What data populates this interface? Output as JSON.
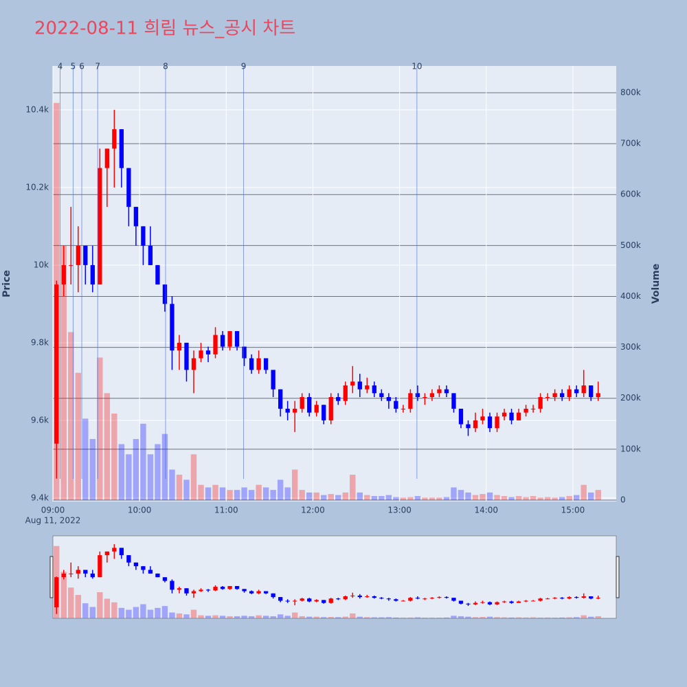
{
  "chart_data": {
    "type": "candlestick",
    "title": "2022-08-11 희림 뉴스_공시 차트",
    "y_label": "Price",
    "y2_label": "Volume",
    "xaxis_date": "Aug 11, 2022",
    "increasing_color": "#ff0000",
    "decreasing_color": "#0000ff",
    "event_color": "#4169e1",
    "grid": true,
    "rangeslider": true,
    "x": [
      "2022-08-11 09:00",
      "2022-08-11 09:05",
      "2022-08-11 09:10",
      "2022-08-11 09:15",
      "2022-08-11 09:20",
      "2022-08-11 09:25",
      "2022-08-11 09:30",
      "2022-08-11 09:35",
      "2022-08-11 09:40",
      "2022-08-11 09:45",
      "2022-08-11 09:50",
      "2022-08-11 09:55",
      "2022-08-11 10:00",
      "2022-08-11 10:05",
      "2022-08-11 10:10",
      "2022-08-11 10:15",
      "2022-08-11 10:20",
      "2022-08-11 10:25",
      "2022-08-11 10:30",
      "2022-08-11 10:35",
      "2022-08-11 10:40",
      "2022-08-11 10:45",
      "2022-08-11 10:50",
      "2022-08-11 10:55",
      "2022-08-11 11:00",
      "2022-08-11 11:05",
      "2022-08-11 11:10",
      "2022-08-11 11:15",
      "2022-08-11 11:20",
      "2022-08-11 11:25",
      "2022-08-11 11:30",
      "2022-08-11 11:35",
      "2022-08-11 11:40",
      "2022-08-11 11:45",
      "2022-08-11 11:50",
      "2022-08-11 11:55",
      "2022-08-11 12:00",
      "2022-08-11 12:05",
      "2022-08-11 12:10",
      "2022-08-11 12:15",
      "2022-08-11 12:20",
      "2022-08-11 12:25",
      "2022-08-11 12:30",
      "2022-08-11 12:35",
      "2022-08-11 12:40",
      "2022-08-11 12:45",
      "2022-08-11 12:50",
      "2022-08-11 12:55",
      "2022-08-11 13:00",
      "2022-08-11 13:05",
      "2022-08-11 13:10",
      "2022-08-11 13:15",
      "2022-08-11 13:20",
      "2022-08-11 13:25",
      "2022-08-11 13:30",
      "2022-08-11 13:35",
      "2022-08-11 13:40",
      "2022-08-11 13:45",
      "2022-08-11 13:50",
      "2022-08-11 13:55",
      "2022-08-11 14:00",
      "2022-08-11 14:05",
      "2022-08-11 14:10",
      "2022-08-11 14:15",
      "2022-08-11 14:20",
      "2022-08-11 14:25",
      "2022-08-11 14:30",
      "2022-08-11 14:35",
      "2022-08-11 14:40",
      "2022-08-11 14:45",
      "2022-08-11 14:50",
      "2022-08-11 14:55",
      "2022-08-11 15:00",
      "2022-08-11 15:05",
      "2022-08-11 15:10",
      "2022-08-11 15:15"
    ],
    "open": [
      9540,
      9950,
      10000,
      10000,
      10050,
      10000,
      9950,
      10250,
      10300,
      10350,
      10250,
      10150,
      10100,
      10050,
      10000,
      9950,
      9900,
      9780,
      9800,
      9730,
      9760,
      9780,
      9770,
      9820,
      9790,
      9830,
      9790,
      9760,
      9730,
      9760,
      9730,
      9680,
      9630,
      9620,
      9630,
      9660,
      9620,
      9640,
      9600,
      9660,
      9650,
      9690,
      9700,
      9680,
      9690,
      9670,
      9660,
      9650,
      9630,
      9630,
      9670,
      9660,
      9660,
      9670,
      9680,
      9670,
      9630,
      9590,
      9580,
      9600,
      9610,
      9580,
      9610,
      9620,
      9600,
      9620,
      9630,
      9630,
      9660,
      9660,
      9670,
      9660,
      9680,
      9670,
      9690,
      9660
    ],
    "high": [
      9960,
      10050,
      10150,
      10100,
      10050,
      10050,
      10300,
      10300,
      10400,
      10350,
      10250,
      10150,
      10100,
      10100,
      10000,
      9950,
      9920,
      9820,
      9800,
      9780,
      9800,
      9790,
      9840,
      9830,
      9830,
      9830,
      9790,
      9770,
      9780,
      9760,
      9730,
      9680,
      9650,
      9650,
      9670,
      9670,
      9650,
      9640,
      9670,
      9670,
      9700,
      9740,
      9720,
      9710,
      9700,
      9680,
      9670,
      9660,
      9640,
      9680,
      9690,
      9670,
      9680,
      9690,
      9690,
      9670,
      9630,
      9600,
      9620,
      9630,
      9620,
      9620,
      9630,
      9630,
      9630,
      9640,
      9640,
      9670,
      9670,
      9680,
      9680,
      9690,
      9690,
      9730,
      9690,
      9700
    ],
    "low": [
      9450,
      9920,
      9950,
      9930,
      9950,
      9930,
      9950,
      10150,
      10200,
      10200,
      10100,
      10050,
      10000,
      10000,
      9950,
      9880,
      9730,
      9730,
      9700,
      9670,
      9750,
      9750,
      9760,
      9780,
      9780,
      9780,
      9740,
      9720,
      9720,
      9720,
      9660,
      9610,
      9600,
      9570,
      9620,
      9610,
      9610,
      9590,
      9590,
      9640,
      9640,
      9670,
      9660,
      9670,
      9660,
      9650,
      9630,
      9620,
      9620,
      9620,
      9650,
      9640,
      9650,
      9660,
      9660,
      9620,
      9580,
      9560,
      9570,
      9590,
      9570,
      9570,
      9600,
      9590,
      9600,
      9610,
      9620,
      9620,
      9650,
      9650,
      9650,
      9650,
      9660,
      9660,
      9650,
      9650
    ],
    "close": [
      9950,
      10000,
      10000,
      10050,
      10000,
      9950,
      10250,
      10300,
      10350,
      10250,
      10150,
      10100,
      10050,
      10000,
      9950,
      9900,
      9780,
      9800,
      9730,
      9760,
      9780,
      9770,
      9820,
      9790,
      9830,
      9790,
      9760,
      9730,
      9760,
      9730,
      9680,
      9630,
      9620,
      9630,
      9660,
      9620,
      9640,
      9600,
      9660,
      9650,
      9690,
      9700,
      9680,
      9690,
      9670,
      9660,
      9650,
      9630,
      9630,
      9670,
      9660,
      9660,
      9670,
      9680,
      9670,
      9630,
      9590,
      9580,
      9600,
      9610,
      9580,
      9610,
      9620,
      9600,
      9620,
      9630,
      9630,
      9660,
      9660,
      9670,
      9660,
      9680,
      9670,
      9690,
      9660,
      9670
    ],
    "volume": [
      780000,
      500000,
      330000,
      250000,
      160000,
      120000,
      280000,
      210000,
      170000,
      110000,
      90000,
      120000,
      150000,
      90000,
      110000,
      130000,
      60000,
      50000,
      40000,
      90000,
      30000,
      25000,
      30000,
      25000,
      20000,
      20000,
      25000,
      20000,
      30000,
      25000,
      20000,
      40000,
      25000,
      60000,
      20000,
      15000,
      15000,
      10000,
      12000,
      10000,
      15000,
      50000,
      15000,
      10000,
      8000,
      8000,
      10000,
      6000,
      5000,
      6000,
      8000,
      5000,
      5000,
      5000,
      6000,
      25000,
      20000,
      15000,
      10000,
      12000,
      15000,
      10000,
      8000,
      6000,
      8000,
      6000,
      8000,
      5000,
      6000,
      5000,
      6000,
      8000,
      10000,
      30000,
      15000,
      20000
    ],
    "events": [
      {
        "label": "4",
        "x": "2022-08-11 09:05"
      },
      {
        "label": "5",
        "x": "2022-08-11 09:14"
      },
      {
        "label": "6",
        "x": "2022-08-11 09:20"
      },
      {
        "label": "7",
        "x": "2022-08-11 09:31"
      },
      {
        "label": "8",
        "x": "2022-08-11 10:18"
      },
      {
        "label": "9",
        "x": "2022-08-11 11:12"
      },
      {
        "label": "10",
        "x": "2022-08-11 13:12"
      }
    ],
    "xlim": [
      "2022-08-11 09:00",
      "2022-08-11 15:30"
    ],
    "xticks": [
      {
        "value": "2022-08-11 09:00",
        "label": "09:00"
      },
      {
        "value": "2022-08-11 10:00",
        "label": "10:00"
      },
      {
        "value": "2022-08-11 11:00",
        "label": "11:00"
      },
      {
        "value": "2022-08-11 12:00",
        "label": "12:00"
      },
      {
        "value": "2022-08-11 13:00",
        "label": "13:00"
      },
      {
        "value": "2022-08-11 14:00",
        "label": "14:00"
      },
      {
        "value": "2022-08-11 15:00",
        "label": "15:00"
      }
    ],
    "ylim": [
      9391,
      10513
    ],
    "yticks": [
      {
        "value": 9400,
        "label": "9.4k"
      },
      {
        "value": 9600,
        "label": "9.6k"
      },
      {
        "value": 9800,
        "label": "9.8k"
      },
      {
        "value": 10000,
        "label": "10k"
      },
      {
        "value": 10200,
        "label": "10.2k"
      },
      {
        "value": 10400,
        "label": "10.4k"
      }
    ],
    "y2lim": [
      -2700,
      852600
    ],
    "y2ticks": [
      0,
      {
        "value": 100000,
        "label": "100k"
      },
      {
        "value": 200000,
        "label": "200k"
      },
      {
        "value": 300000,
        "label": "300k"
      },
      {
        "value": 400000,
        "label": "400k"
      },
      {
        "value": 500000,
        "label": "500k"
      },
      {
        "value": 600000,
        "label": "600k"
      },
      {
        "value": 700000,
        "label": "700k"
      },
      {
        "value": 800000,
        "label": "800k"
      }
    ]
  }
}
